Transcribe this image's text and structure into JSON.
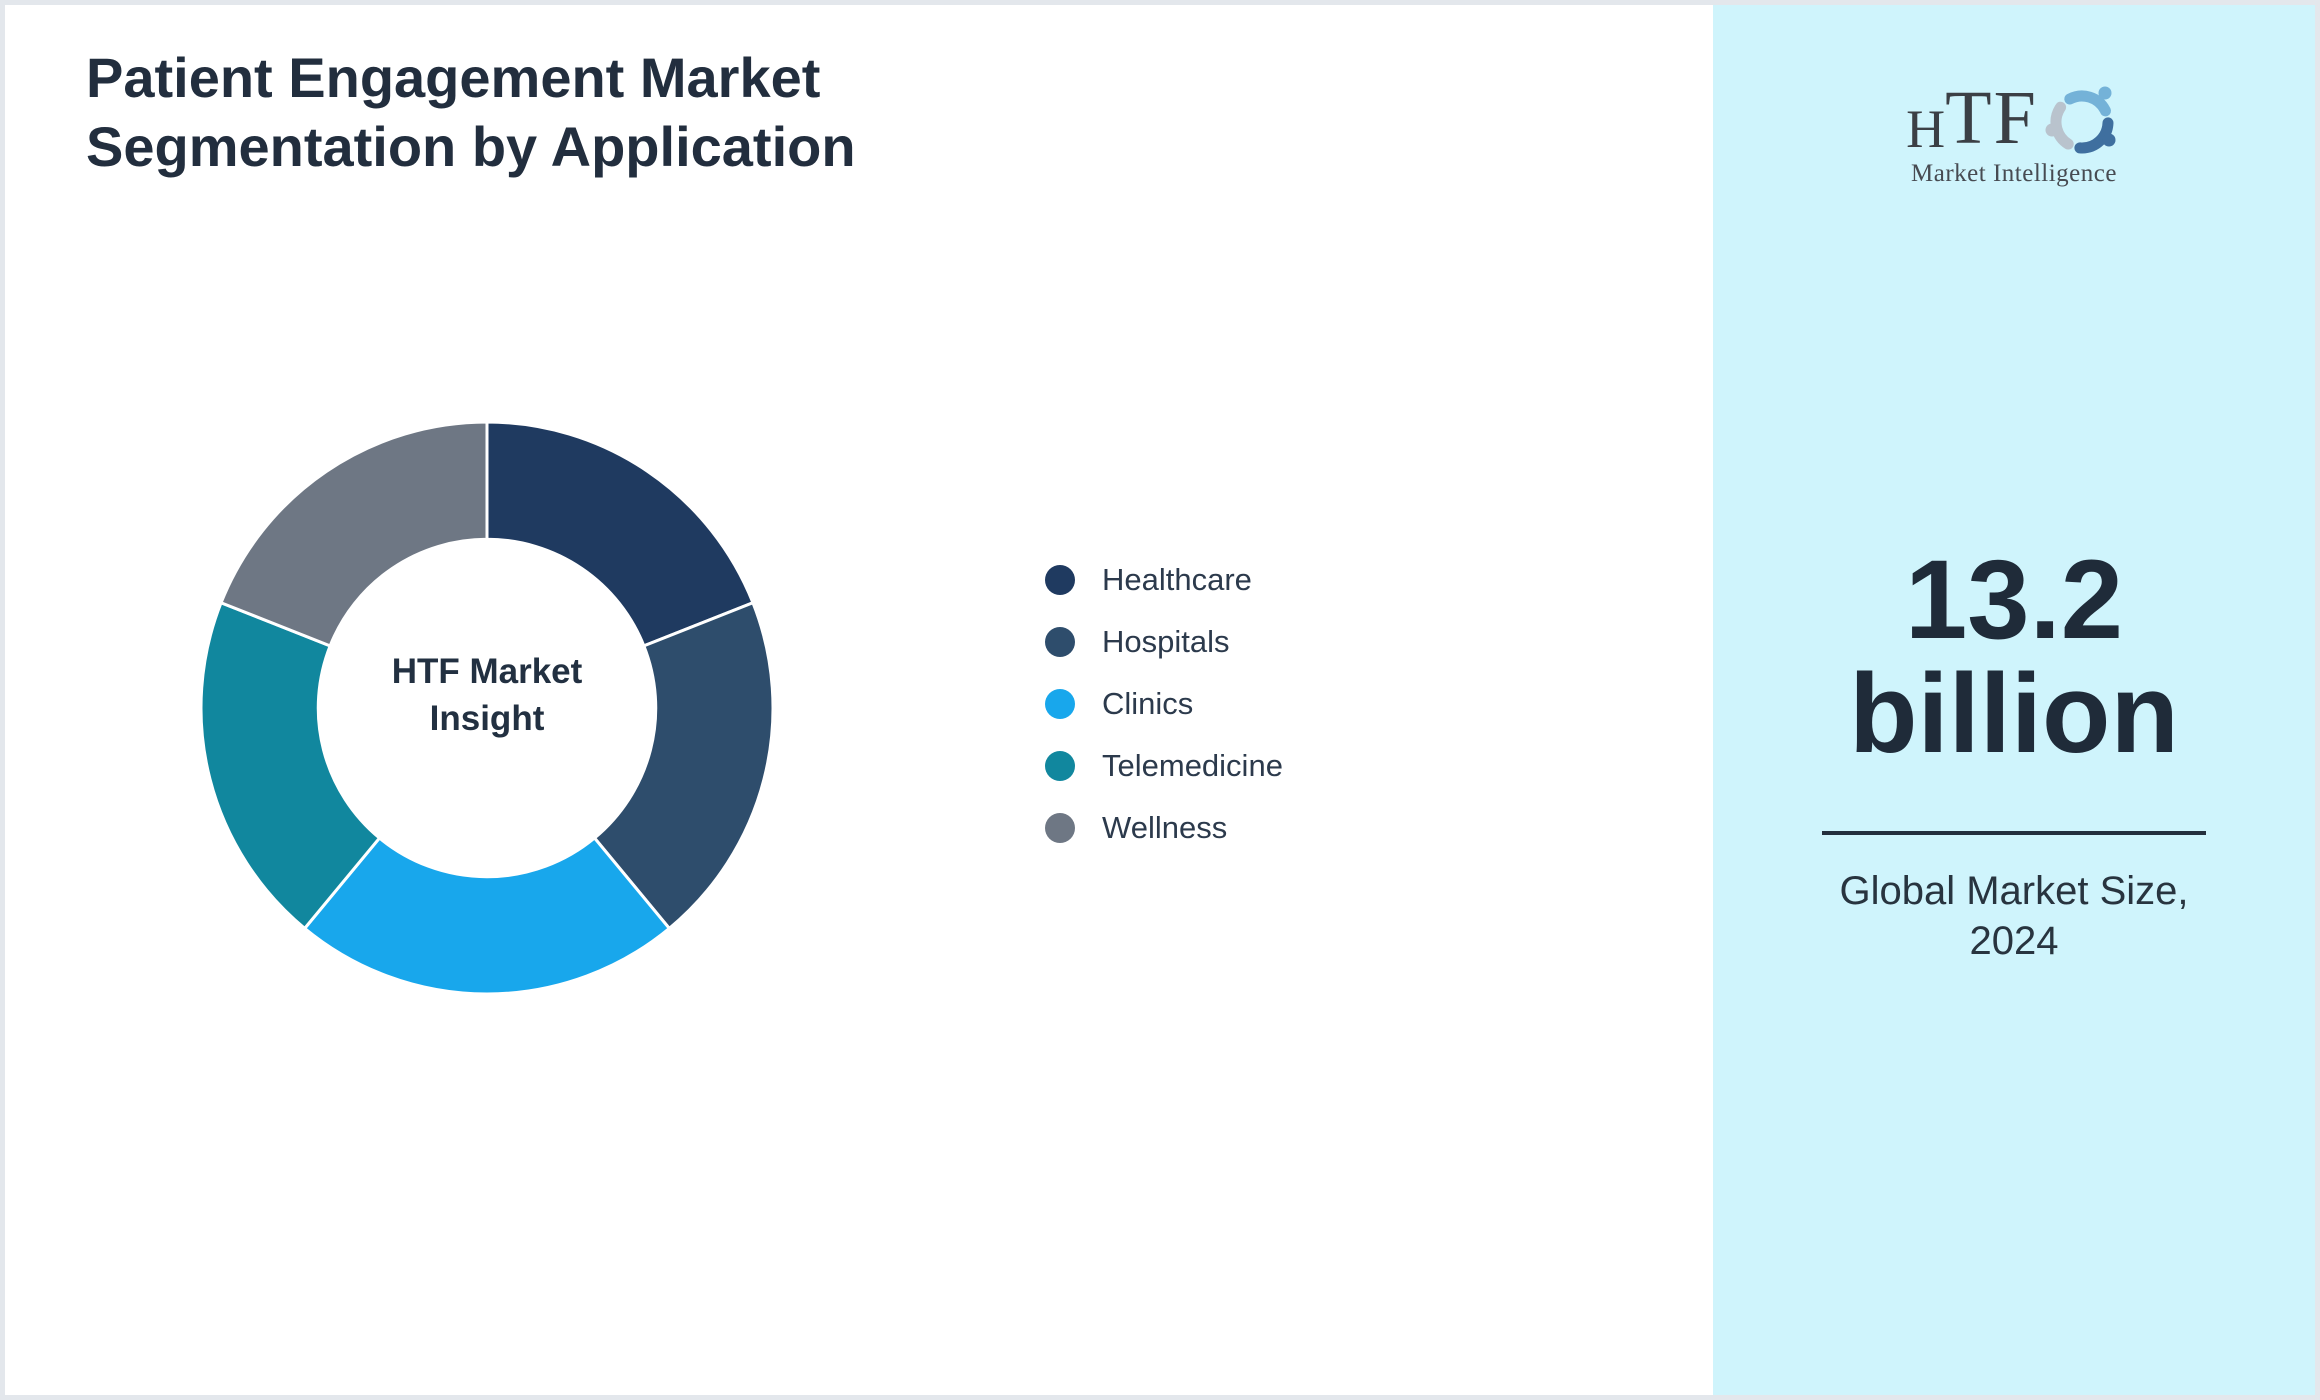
{
  "title": {
    "line1": "Patient Engagement Market",
    "line2": "Segmentation by Application"
  },
  "chart_data": {
    "type": "pie",
    "subtype": "donut",
    "title": "Patient Engagement Market Segmentation by Application",
    "center_label": "HTF Market Insight",
    "categories": [
      "Healthcare",
      "Hospitals",
      "Clinics",
      "Telemedicine",
      "Wellness"
    ],
    "values_percent": [
      19,
      20,
      22,
      20,
      19
    ],
    "colors": [
      "#1f3a60",
      "#2e4d6c",
      "#18a7ec",
      "#11879e",
      "#6e7784"
    ],
    "start_angle_deg": 0,
    "direction": "clockwise",
    "inner_radius_ratio": 0.59,
    "slice_border_color": "#ffffff",
    "legend_position": "right",
    "grid": false
  },
  "side_panel": {
    "background": "#cff4fc",
    "logo": {
      "brand_h": "H",
      "brand_tf": "TF",
      "tagline": "Market Intelligence"
    },
    "market_size_value": "13.2 billion",
    "caption": "Global Market Size, 2024"
  },
  "colors": {
    "title_text": "#222e3e",
    "legend_text": "#2c3a4c",
    "divider": "#232f3d",
    "page_border": "#e3e7ec",
    "page_background": "#ffffff"
  }
}
